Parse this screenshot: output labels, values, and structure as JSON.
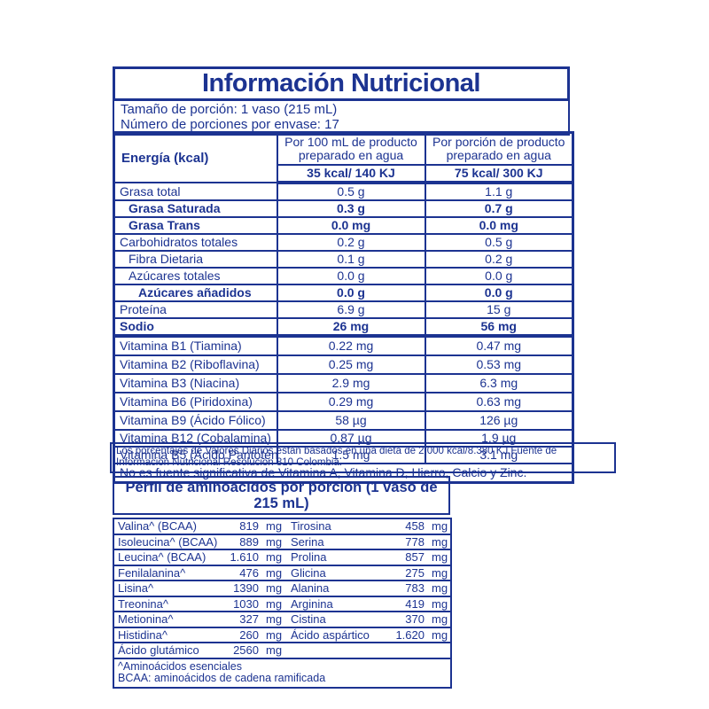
{
  "colors": {
    "accent_blue": "#1c3391",
    "background": "#ffffff"
  },
  "title": "Información Nutricional",
  "serving": {
    "line1": "Tamaño de porción: 1 vaso (215 mL)",
    "line2": "Número de porciones por envase: 17"
  },
  "nutrition": {
    "energy_label": "Energía (kcal)",
    "col1_header": "Por 100 mL de producto preparado en agua",
    "col1_energy": "35 kcal/ 140 KJ",
    "col2_header": "Por porción de producto preparado en agua",
    "col2_energy": "75 kcal/ 300 KJ",
    "rows": [
      {
        "label": "Grasa total",
        "per100": "0.5 g",
        "portion": "1.1 g"
      },
      {
        "label": "Grasa Saturada",
        "per100": "0.3 g",
        "portion": "0.7 g"
      },
      {
        "label": "Grasa Trans",
        "per100": "0.0 mg",
        "portion": "0.0 mg"
      },
      {
        "label": "Carbohidratos totales",
        "per100": "0.2 g",
        "portion": "0.5 g"
      },
      {
        "label": "Fibra Dietaria",
        "per100": "0.1 g",
        "portion": "0.2 g"
      },
      {
        "label": "Azúcares totales",
        "per100": "0.0 g",
        "portion": "0.0 g"
      },
      {
        "label": "Azúcares añadidos",
        "per100": "0.0 g",
        "portion": "0.0 g"
      },
      {
        "label": "Proteína",
        "per100": "6.9 g",
        "portion": "15 g"
      },
      {
        "label": "Sodio",
        "per100": "26 mg",
        "portion": "56 mg"
      },
      {
        "label": "Vitamina B1 (Tiamina)",
        "per100": "0.22 mg",
        "portion": "0.47 mg"
      },
      {
        "label": "Vitamina B2 (Riboflavina)",
        "per100": "0.25 mg",
        "portion": "0.53 mg"
      },
      {
        "label": "Vitamina B3 (Niacina)",
        "per100": "2.9 mg",
        "portion": "6.3 mg"
      },
      {
        "label": "Vitamina B6 (Piridoxina)",
        "per100": "0.29 mg",
        "portion": "0.63 mg"
      },
      {
        "label": "Vitamina B9 (Ácido Fólico)",
        "per100": "58 µg",
        "portion": "126 µg"
      },
      {
        "label": "Vitamina B12 (Cobalamina)",
        "per100": "0.87 µg",
        "portion": "1.9 µg"
      },
      {
        "label": "Vitamina B5 (Ácido Pantoténico)",
        "per100": "1.5 mg",
        "portion": "3.1 mg"
      }
    ],
    "footnote": "No es fuente significativa de Vitamina A, Vitamina D, Hierro, Calcio y Zinc."
  },
  "disclaimer": "Los porcentajes de Valores Diarios están basados en una dieta de 2.000 kcal/8.380 KJ.Fuente de Información Nutricional Resolución 810 Colombia.",
  "amino": {
    "title": "Perfil de aminoácidos por porción (1 vaso de 215 mL)",
    "rows": [
      {
        "l_name": "Valina^ (BCAA)",
        "l_value": "819",
        "l_unit": "mg",
        "r_name": "Tirosina",
        "r_value": "458",
        "r_unit": "mg"
      },
      {
        "l_name": "Isoleucina^ (BCAA)",
        "l_value": "889",
        "l_unit": "mg",
        "r_name": "Serina",
        "r_value": "778",
        "r_unit": "mg"
      },
      {
        "l_name": "Leucina^ (BCAA)",
        "l_value": "1.610",
        "l_unit": "mg",
        "r_name": "Prolina",
        "r_value": "857",
        "r_unit": "mg"
      },
      {
        "l_name": "Fenilalanina^",
        "l_value": "476",
        "l_unit": "mg",
        "r_name": "Glicina",
        "r_value": "275",
        "r_unit": "mg"
      },
      {
        "l_name": "Lisina^",
        "l_value": "1390",
        "l_unit": "mg",
        "r_name": "Alanina",
        "r_value": "783",
        "r_unit": "mg"
      },
      {
        "l_name": "Treonina^",
        "l_value": "1030",
        "l_unit": "mg",
        "r_name": "Arginina",
        "r_value": "419",
        "r_unit": "mg"
      },
      {
        "l_name": "Metionina^",
        "l_value": "327",
        "l_unit": "mg",
        "r_name": "Cistina",
        "r_value": "370",
        "r_unit": "mg"
      },
      {
        "l_name": "Histidina^",
        "l_value": "260",
        "l_unit": "mg",
        "r_name": "Ácido aspártico",
        "r_value": "1.620",
        "r_unit": "mg"
      },
      {
        "l_name": "Ácido glutámico",
        "l_value": "2560",
        "l_unit": "mg",
        "r_name": "",
        "r_value": "",
        "r_unit": ""
      }
    ],
    "notes": [
      "^Aminoácidos esenciales",
      "BCAA: aminoácidos de cadena ramificada"
    ]
  }
}
